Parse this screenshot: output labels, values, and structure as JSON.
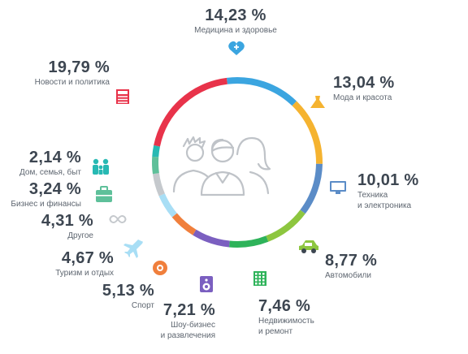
{
  "chart_data": {
    "type": "pie",
    "style": "ring",
    "title": "",
    "slices": [
      {
        "name": "Медицина и здоровье",
        "line2": "",
        "value": 14.23,
        "label": "14,23 %",
        "color": "#3ba5e0",
        "icon": "heart-plus-icon"
      },
      {
        "name": "Мода и красота",
        "line2": "",
        "value": 13.04,
        "label": "13,04 %",
        "color": "#f5b330",
        "icon": "dress-icon"
      },
      {
        "name": "Техника",
        "line2": "и электроника",
        "value": 10.01,
        "label": "10,01 %",
        "color": "#5b8cc7",
        "icon": "monitor-icon"
      },
      {
        "name": "Автомобили",
        "line2": "",
        "value": 8.77,
        "label": "8,77 %",
        "color": "#8dc63f",
        "icon": "car-icon"
      },
      {
        "name": "Недвижимость",
        "line2": "и ремонт",
        "value": 7.46,
        "label": "7,46 %",
        "color": "#2eb35a",
        "icon": "building-icon"
      },
      {
        "name": "Шоу-бизнес",
        "line2": "и развлечения",
        "value": 7.21,
        "label": "7,21 %",
        "color": "#7b5fc0",
        "icon": "speaker-icon"
      },
      {
        "name": "Спорт",
        "line2": "",
        "value": 5.13,
        "label": "5,13 %",
        "color": "#f07f3c",
        "icon": "ball-icon"
      },
      {
        "name": "Туризм и отдых",
        "line2": "",
        "value": 4.67,
        "label": "4,67 %",
        "color": "#a8def5",
        "icon": "plane-icon"
      },
      {
        "name": "Другое",
        "line2": "",
        "value": 4.31,
        "label": "4,31 %",
        "color": "#c5c9cd",
        "icon": "infinity-icon"
      },
      {
        "name": "Бизнес и финансы",
        "line2": "",
        "value": 3.24,
        "label": "3,24 %",
        "color": "#5ec09a",
        "icon": "briefcase-icon"
      },
      {
        "name": "Дом, семья, быт",
        "line2": "",
        "value": 2.14,
        "label": "2,14 %",
        "color": "#27b9b3",
        "icon": "family-icon"
      },
      {
        "name": "Новости и политика",
        "line2": "",
        "value": 19.79,
        "label": "19,79 %",
        "color": "#e8334a",
        "icon": "newspaper-icon"
      }
    ],
    "center_icon": "people-group-icon"
  }
}
